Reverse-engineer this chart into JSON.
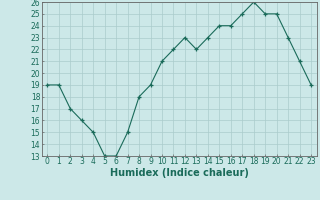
{
  "title": "",
  "x_values": [
    0,
    1,
    2,
    3,
    4,
    5,
    6,
    7,
    8,
    9,
    10,
    11,
    12,
    13,
    14,
    15,
    16,
    17,
    18,
    19,
    20,
    21,
    22,
    23
  ],
  "y_values": [
    19,
    19,
    17,
    16,
    15,
    13,
    13,
    15,
    18,
    19,
    21,
    22,
    23,
    22,
    23,
    24,
    24,
    25,
    26,
    25,
    25,
    23,
    21,
    19
  ],
  "xlabel": "Humidex (Indice chaleur)",
  "ylim": [
    13,
    26
  ],
  "xlim_left": -0.5,
  "xlim_right": 23.5,
  "yticks": [
    13,
    14,
    15,
    16,
    17,
    18,
    19,
    20,
    21,
    22,
    23,
    24,
    25,
    26
  ],
  "xticks": [
    0,
    1,
    2,
    3,
    4,
    5,
    6,
    7,
    8,
    9,
    10,
    11,
    12,
    13,
    14,
    15,
    16,
    17,
    18,
    19,
    20,
    21,
    22,
    23
  ],
  "line_color": "#1a6b5a",
  "marker_color": "#1a6b5a",
  "bg_color": "#cce8e8",
  "grid_color": "#aacccc",
  "tick_fontsize": 5.5,
  "xlabel_fontsize": 7.0
}
